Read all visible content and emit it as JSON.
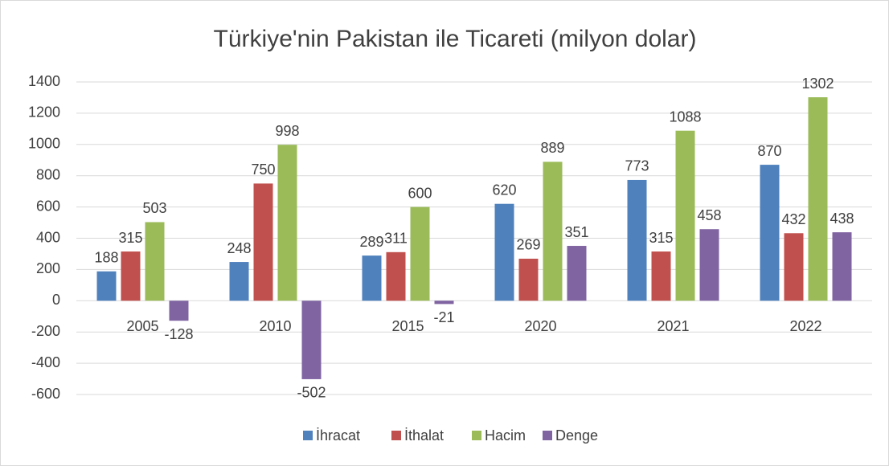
{
  "chart_data": {
    "type": "bar",
    "title": "Türkiye'nin Pakistan ile Ticareti (milyon dolar)",
    "categories": [
      "2005",
      "2010",
      "2015",
      "2020",
      "2021",
      "2022"
    ],
    "series": [
      {
        "name": "İhracat",
        "color": "#4f81bd",
        "values": [
          188,
          248,
          289,
          620,
          773,
          870
        ]
      },
      {
        "name": "İthalat",
        "color": "#c0504d",
        "values": [
          315,
          750,
          311,
          269,
          315,
          432
        ]
      },
      {
        "name": "Hacim",
        "color": "#9bbb59",
        "values": [
          503,
          998,
          600,
          889,
          1088,
          1302
        ]
      },
      {
        "name": "Denge",
        "color": "#8064a2",
        "values": [
          -128,
          -502,
          -21,
          351,
          458,
          438
        ]
      }
    ],
    "ylim": [
      -600,
      1400
    ],
    "yticks": [
      -600,
      -400,
      -200,
      0,
      200,
      400,
      600,
      800,
      1000,
      1200,
      1400
    ],
    "grid": true,
    "legend": "bottom"
  }
}
